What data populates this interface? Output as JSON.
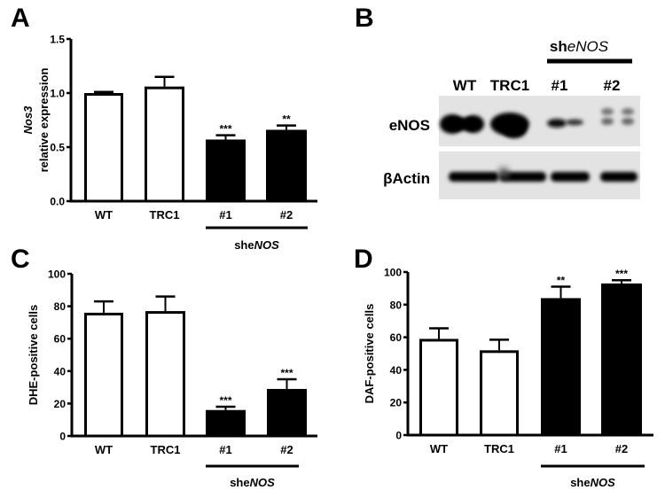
{
  "figure": {
    "panels": [
      {
        "letter": "A"
      },
      {
        "letter": "B"
      },
      {
        "letter": "C"
      },
      {
        "letter": "D"
      }
    ]
  },
  "chart_data": [
    {
      "panel": "A",
      "type": "bar",
      "title": "",
      "ylabel_italic": "Nos3",
      "ylabel": "relative expression",
      "xlabel": "",
      "categories": [
        "WT",
        "TRC1",
        "#1",
        "#2"
      ],
      "group_label": {
        "prefix": "she",
        "italic": "NOS",
        "covers": [
          "#1",
          "#2"
        ]
      },
      "values": [
        1.0,
        1.06,
        0.57,
        0.66
      ],
      "error": [
        0.01,
        0.09,
        0.04,
        0.04
      ],
      "significance": [
        "",
        "",
        "***",
        "**"
      ],
      "fill": [
        "#ffffff",
        "#ffffff",
        "#000000",
        "#000000"
      ],
      "ylim": [
        0,
        1.5
      ],
      "yticks": [
        "0.0",
        "0.5",
        "1.0",
        "1.5"
      ],
      "ytick_values": [
        0,
        0.5,
        1.0,
        1.5
      ],
      "grid": false
    },
    {
      "panel": "B",
      "type": "western_blot",
      "lanes": [
        "WT",
        "TRC1",
        "#1",
        "#2"
      ],
      "group_label": {
        "prefix": "sh",
        "italic": "eNOS",
        "covers": [
          "#1",
          "#2"
        ]
      },
      "rows": [
        {
          "label": "eNOS",
          "band_intensity": [
            1.0,
            1.0,
            0.35,
            0.25
          ]
        },
        {
          "label": "βActin",
          "band_intensity": [
            0.9,
            0.9,
            0.9,
            0.9
          ]
        }
      ]
    },
    {
      "panel": "C",
      "type": "bar",
      "title": "",
      "ylabel": "DHE-positive cells",
      "xlabel": "",
      "categories": [
        "WT",
        "TRC1",
        "#1",
        "#2"
      ],
      "group_label": {
        "prefix": "she",
        "italic": "NOS",
        "covers": [
          "#1",
          "#2"
        ]
      },
      "values": [
        76,
        77,
        16,
        29
      ],
      "error": [
        7,
        9,
        2,
        6
      ],
      "significance": [
        "",
        "",
        "***",
        "***"
      ],
      "fill": [
        "#ffffff",
        "#ffffff",
        "#000000",
        "#000000"
      ],
      "ylim": [
        0,
        100
      ],
      "yticks": [
        "0",
        "20",
        "40",
        "60",
        "80",
        "100"
      ],
      "ytick_values": [
        0,
        20,
        40,
        60,
        80,
        100
      ],
      "grid": false
    },
    {
      "panel": "D",
      "type": "bar",
      "title": "",
      "ylabel": "DAF-positive cells",
      "xlabel": "",
      "categories": [
        "WT",
        "TRC1",
        "#1",
        "#2"
      ],
      "group_label": {
        "prefix": "she",
        "italic": "NOS",
        "covers": [
          "#1",
          "#2"
        ]
      },
      "values": [
        59,
        52,
        84,
        93
      ],
      "error": [
        6.5,
        6.5,
        7,
        2
      ],
      "significance": [
        "",
        "",
        "**",
        "***"
      ],
      "fill": [
        "#ffffff",
        "#ffffff",
        "#000000",
        "#000000"
      ],
      "ylim": [
        0,
        100
      ],
      "yticks": [
        "0",
        "20",
        "40",
        "60",
        "80",
        "100"
      ],
      "ytick_values": [
        0,
        20,
        40,
        60,
        80,
        100
      ],
      "grid": false
    }
  ]
}
